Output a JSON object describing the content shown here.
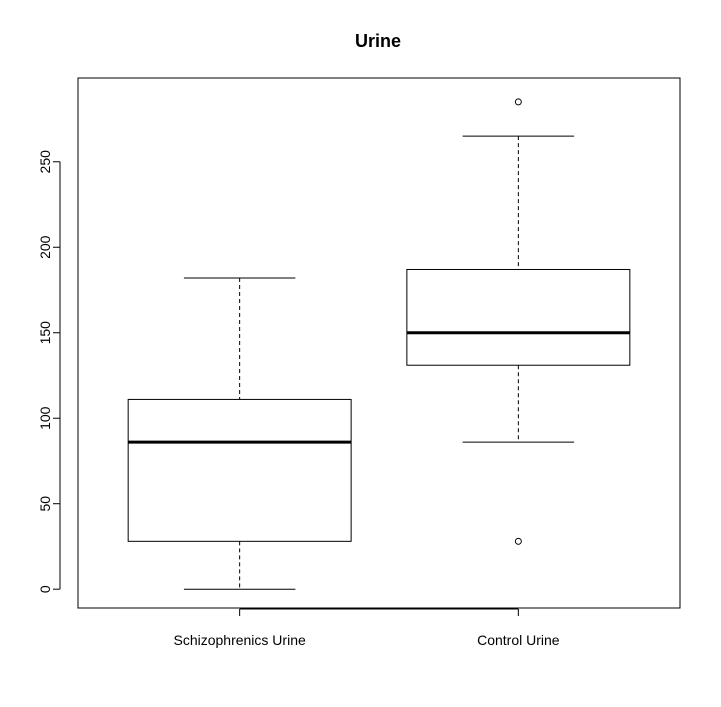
{
  "chart_data": {
    "type": "box",
    "title": "Urine",
    "xlabel": "",
    "ylabel": "",
    "ylim": [
      -11,
      299
    ],
    "yticks": [
      0,
      50,
      100,
      150,
      200,
      250
    ],
    "ytick_labels": [
      "0",
      "50",
      "100",
      "150",
      "200",
      "250"
    ],
    "categories": [
      "Schizophrenics Urine",
      "Control Urine"
    ],
    "boxes": [
      {
        "category": "Schizophrenics Urine",
        "whisker_low": 0,
        "q1": 28,
        "median": 86,
        "q3": 111,
        "whisker_high": 182,
        "outliers": []
      },
      {
        "category": "Control Urine",
        "whisker_low": 86,
        "q1": 131,
        "median": 150,
        "q3": 187,
        "whisker_high": 265,
        "outliers": [
          28,
          285
        ]
      }
    ],
    "grid": false,
    "legend": "none"
  }
}
